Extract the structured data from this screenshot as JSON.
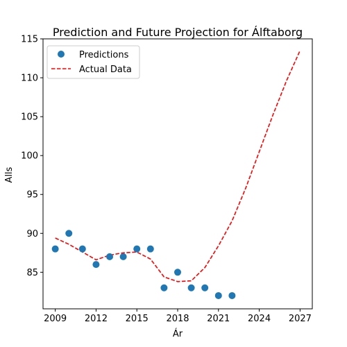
{
  "chart_data": {
    "type": "scatter",
    "title": "Prediction and Future Projection for Álftaborg",
    "xlabel": "Ár",
    "ylabel": "Alls",
    "xlim": [
      2008.1,
      2027.9
    ],
    "ylim": [
      80.3,
      115.0
    ],
    "xticks": [
      2009,
      2012,
      2015,
      2018,
      2021,
      2024,
      2027
    ],
    "yticks": [
      85,
      90,
      95,
      100,
      105,
      110,
      115
    ],
    "grid": false,
    "legend_position": "top-left",
    "series": [
      {
        "name": "Predictions",
        "kind": "scatter",
        "color": "#1f77b4",
        "x": [
          2009,
          2010,
          2011,
          2012,
          2013,
          2014,
          2015,
          2016,
          2017,
          2018,
          2019,
          2020,
          2021,
          2022
        ],
        "y": [
          88,
          90,
          88,
          86,
          87,
          87,
          88,
          88,
          83,
          85,
          83,
          83,
          82,
          82
        ]
      },
      {
        "name": "Actual Data",
        "kind": "line",
        "style": "dashed",
        "color": "#ff0000",
        "x": [
          2009,
          2010,
          2011,
          2012,
          2013,
          2014,
          2015,
          2016,
          2017,
          2018,
          2019,
          2020,
          2021,
          2022,
          2023,
          2024,
          2025,
          2026,
          2027
        ],
        "y": [
          89.4,
          88.6,
          87.6,
          86.6,
          87.2,
          87.5,
          87.6,
          86.7,
          84.4,
          83.8,
          83.9,
          85.6,
          88.4,
          91.6,
          95.8,
          100.5,
          105.2,
          109.6,
          113.5
        ]
      }
    ]
  }
}
